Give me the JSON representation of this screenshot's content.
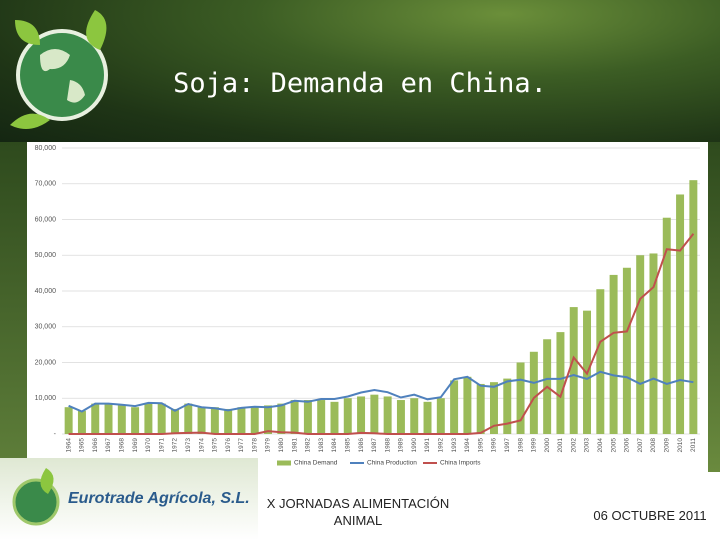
{
  "slide": {
    "title": "Soja: Demanda en China.",
    "company": "Eurotrade Agrícola, S.L.",
    "event": "X JORNADAS ALIMENTACIÓN ANIMAL",
    "date": "06 OCTUBRE 2011"
  },
  "chart_data": {
    "type": "bar",
    "categories": [
      "1964",
      "1965",
      "1966",
      "1967",
      "1968",
      "1969",
      "1970",
      "1971",
      "1972",
      "1973",
      "1974",
      "1975",
      "1976",
      "1977",
      "1978",
      "1979",
      "1980",
      "1981",
      "1982",
      "1983",
      "1984",
      "1985",
      "1986",
      "1987",
      "1988",
      "1989",
      "1990",
      "1991",
      "1992",
      "1993",
      "1994",
      "1995",
      "1996",
      "1997",
      "1998",
      "1999",
      "2000",
      "2001",
      "2002",
      "2003",
      "2004",
      "2005",
      "2006",
      "2007",
      "2008",
      "2009",
      "2010",
      "2011"
    ],
    "series": [
      {
        "name": "China Demand",
        "type": "bar",
        "color": "#9bbb59",
        "values": [
          7500,
          6500,
          8500,
          8500,
          8000,
          7500,
          8500,
          8500,
          7000,
          8500,
          7500,
          7500,
          7000,
          7500,
          7500,
          8000,
          8500,
          9500,
          9500,
          9500,
          9000,
          10000,
          10500,
          11000,
          10500,
          9500,
          10000,
          9000,
          10000,
          15000,
          16000,
          14000,
          14500,
          15500,
          20000,
          23000,
          26500,
          28500,
          35500,
          34500,
          40500,
          44500,
          46500,
          50000,
          50500,
          60500,
          67000,
          71000
        ]
      },
      {
        "name": "China Production",
        "type": "line",
        "color": "#4f81bd",
        "values": [
          7900,
          6300,
          8500,
          8500,
          8200,
          7800,
          8700,
          8600,
          6500,
          8400,
          7500,
          7200,
          6600,
          7300,
          7600,
          7500,
          8000,
          9300,
          9000,
          9800,
          9800,
          10500,
          11600,
          12300,
          11700,
          10200,
          11000,
          9700,
          10300,
          15300,
          16000,
          13500,
          13200,
          14700,
          15200,
          14300,
          15400,
          15400,
          16500,
          15400,
          17400,
          16400,
          15900,
          14000,
          15500,
          14000,
          15100,
          14500
        ]
      },
      {
        "name": "China Imports",
        "type": "line",
        "color": "#c0504d",
        "values": [
          0,
          0,
          0,
          0,
          0,
          0,
          0,
          0,
          200,
          300,
          400,
          0,
          0,
          0,
          0,
          800,
          500,
          400,
          0,
          0,
          0,
          0,
          300,
          200,
          0,
          0,
          0,
          0,
          0,
          0,
          0,
          300,
          2300,
          2900,
          3800,
          10100,
          13200,
          10400,
          21400,
          16900,
          25800,
          28300,
          28700,
          37800,
          41100,
          51700,
          51300,
          56000
        ]
      }
    ],
    "ylim": [
      0,
      80000
    ],
    "yticks": [
      {
        "value": 0,
        "label": "-"
      },
      {
        "value": 10000,
        "label": "10,000"
      },
      {
        "value": 20000,
        "label": "20,000"
      },
      {
        "value": 30000,
        "label": "30,000"
      },
      {
        "value": 40000,
        "label": "40,000"
      },
      {
        "value": 50000,
        "label": "50,000"
      },
      {
        "value": 60000,
        "label": "60,000"
      },
      {
        "value": 70000,
        "label": "70,000"
      },
      {
        "value": 80000,
        "label": "80,000"
      }
    ],
    "grid": true
  }
}
